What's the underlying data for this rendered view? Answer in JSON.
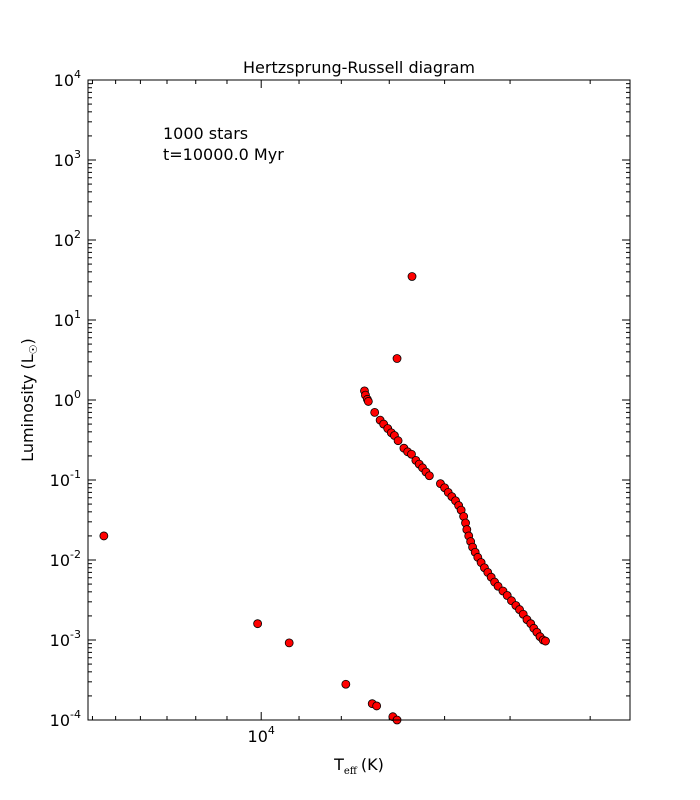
{
  "chart_data": {
    "type": "scatter",
    "title": "Hertzsprung-Russell diagram",
    "xlabel": {
      "main": "T",
      "sub": "eff",
      "unit": "(K)"
    },
    "ylabel": {
      "main": "Luminosity (L",
      "sun_symbol": "☉",
      "close": ")"
    },
    "annotations": [
      "1000 stars",
      "t=10000.0 Myr"
    ],
    "x_scale": "log",
    "y_scale": "log",
    "x_inverted": true,
    "xlim": [
      16200,
      3580
    ],
    "ylim": [
      0.0001,
      10000
    ],
    "x_major_ticks": [
      {
        "value": 10000,
        "base": "10",
        "exp": "4"
      }
    ],
    "x_minor_ticks": [
      16000,
      15000,
      14000,
      13000,
      12000,
      11000,
      9000,
      8000,
      7000,
      6000,
      5000,
      4000
    ],
    "y_major_ticks": [
      {
        "value": 0.0001,
        "base": "10",
        "exp": "-4"
      },
      {
        "value": 0.001,
        "base": "10",
        "exp": "-3"
      },
      {
        "value": 0.01,
        "base": "10",
        "exp": "-2"
      },
      {
        "value": 0.1,
        "base": "10",
        "exp": "-1"
      },
      {
        "value": 1,
        "base": "10",
        "exp": "0"
      },
      {
        "value": 10,
        "base": "10",
        "exp": "1"
      },
      {
        "value": 100,
        "base": "10",
        "exp": "2"
      },
      {
        "value": 1000,
        "base": "10",
        "exp": "3"
      },
      {
        "value": 10000,
        "base": "10",
        "exp": "4"
      }
    ],
    "marker_color": "#ff0000",
    "marker_edge_color": "#000000",
    "series": [
      {
        "points": [
          [
            15500,
            0.02
          ],
          [
            10100,
            0.0016
          ],
          [
            9250,
            0.00092
          ],
          [
            7900,
            0.00028
          ],
          [
            7340,
            0.00016
          ],
          [
            7250,
            0.00015
          ],
          [
            6930,
            0.00011
          ],
          [
            6850,
            0.0001
          ],
          [
            6850,
            3.3
          ],
          [
            6570,
            35
          ],
          [
            7500,
            1.3
          ],
          [
            7480,
            1.15
          ],
          [
            7440,
            1.02
          ],
          [
            7420,
            0.96
          ],
          [
            7290,
            0.7
          ],
          [
            7180,
            0.56
          ],
          [
            7110,
            0.5
          ],
          [
            7030,
            0.44
          ],
          [
            6960,
            0.39
          ],
          [
            6900,
            0.36
          ],
          [
            6830,
            0.31
          ],
          [
            6720,
            0.25
          ],
          [
            6650,
            0.225
          ],
          [
            6580,
            0.21
          ],
          [
            6500,
            0.176
          ],
          [
            6440,
            0.158
          ],
          [
            6380,
            0.142
          ],
          [
            6320,
            0.126
          ],
          [
            6260,
            0.113
          ],
          [
            6070,
            0.09
          ],
          [
            6000,
            0.08
          ],
          [
            5940,
            0.07
          ],
          [
            5880,
            0.062
          ],
          [
            5820,
            0.055
          ],
          [
            5770,
            0.048
          ],
          [
            5730,
            0.042
          ],
          [
            5690,
            0.035
          ],
          [
            5660,
            0.029
          ],
          [
            5640,
            0.024
          ],
          [
            5610,
            0.02
          ],
          [
            5580,
            0.017
          ],
          [
            5550,
            0.0145
          ],
          [
            5510,
            0.0125
          ],
          [
            5470,
            0.0108
          ],
          [
            5420,
            0.0093
          ],
          [
            5370,
            0.008
          ],
          [
            5320,
            0.007
          ],
          [
            5270,
            0.0061
          ],
          [
            5220,
            0.0053
          ],
          [
            5170,
            0.0047
          ],
          [
            5100,
            0.0041
          ],
          [
            5040,
            0.0036
          ],
          [
            4980,
            0.0031
          ],
          [
            4920,
            0.0027
          ],
          [
            4870,
            0.0024
          ],
          [
            4820,
            0.0021
          ],
          [
            4770,
            0.0018
          ],
          [
            4720,
            0.0016
          ],
          [
            4680,
            0.0014
          ],
          [
            4640,
            0.00125
          ],
          [
            4600,
            0.0011
          ],
          [
            4560,
            0.001
          ],
          [
            4530,
            0.00097
          ]
        ]
      }
    ]
  }
}
